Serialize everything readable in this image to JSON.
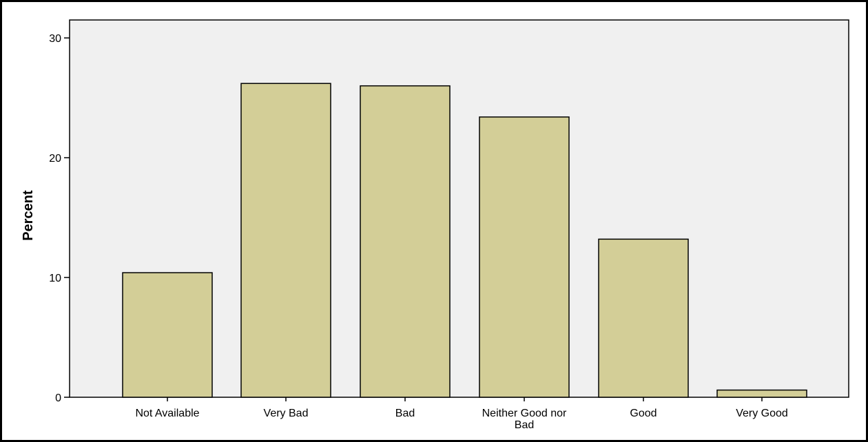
{
  "chart_data": {
    "type": "bar",
    "categories": [
      "Not Available",
      "Very Bad",
      "Bad",
      "Neither Good nor Bad",
      "Good",
      "Very Good"
    ],
    "category_lines": [
      [
        "Not Available"
      ],
      [
        "Very Bad"
      ],
      [
        "Bad"
      ],
      [
        "Neither Good nor",
        "Bad"
      ],
      [
        "Good"
      ],
      [
        "Very Good"
      ]
    ],
    "values": [
      10.4,
      26.2,
      26.0,
      23.4,
      13.2,
      0.6
    ],
    "title": "",
    "xlabel": "",
    "ylabel": "Percent",
    "ylim": [
      0,
      31.5
    ],
    "yticks": [
      0,
      10,
      20,
      30
    ],
    "grid": false,
    "colors": {
      "plot_background": "#f0f0f0",
      "bar_fill": "#d3ce97",
      "bar_stroke": "#000000",
      "axis": "#000000"
    }
  }
}
